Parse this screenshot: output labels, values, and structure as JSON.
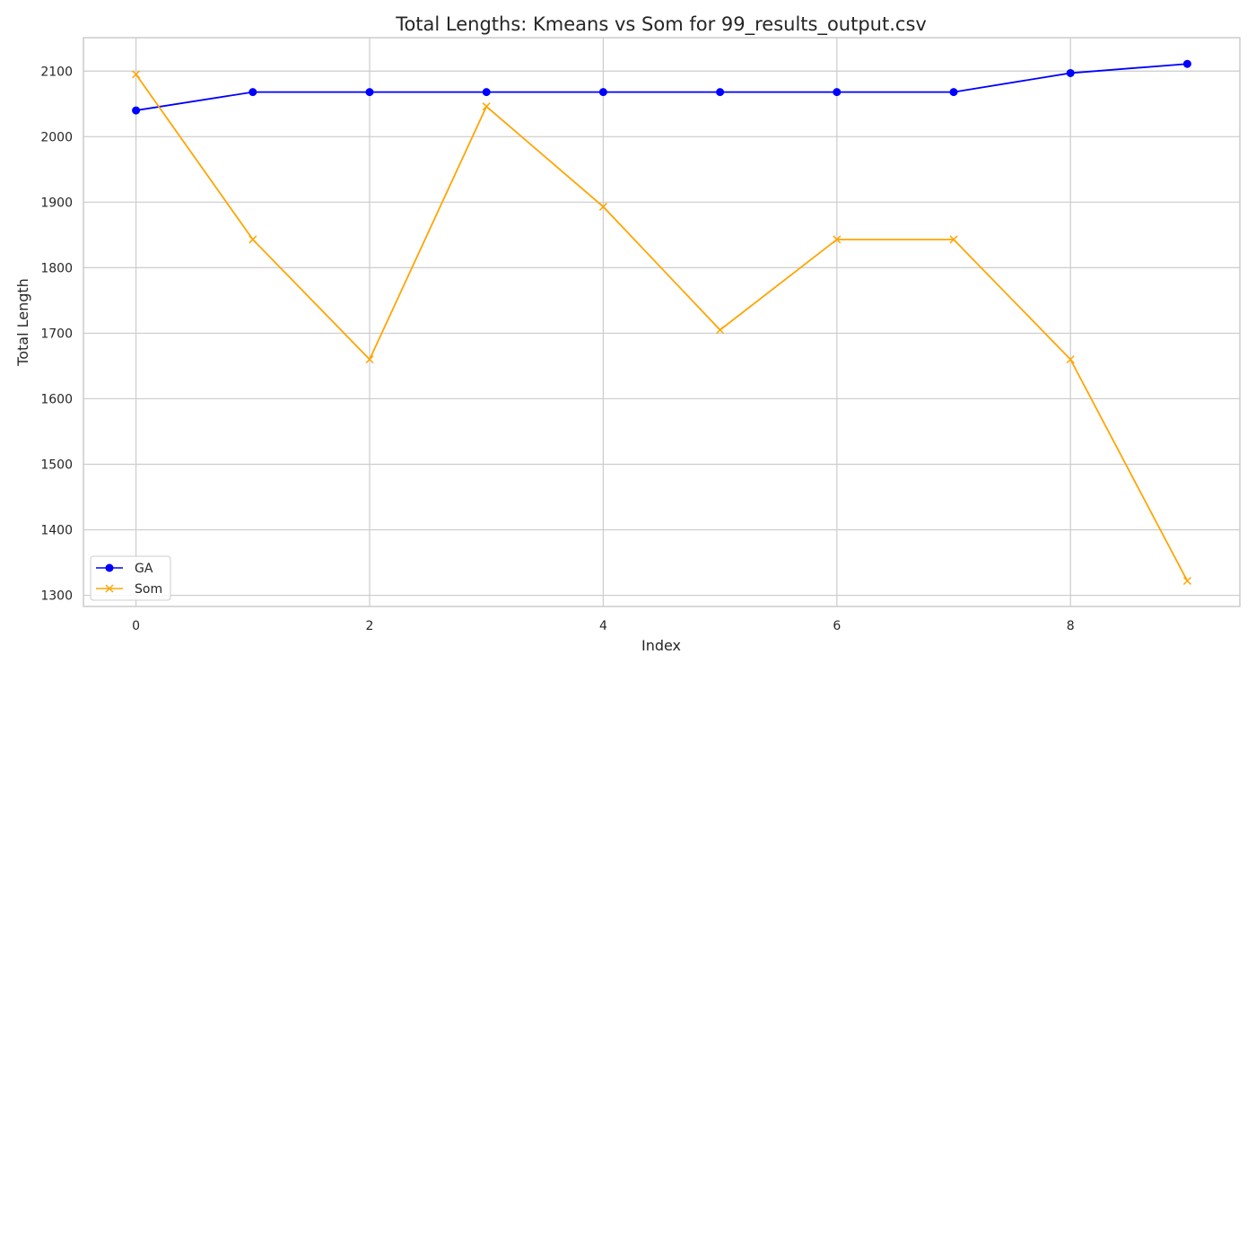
{
  "chart_data": {
    "type": "line",
    "title": "Total Lengths: Kmeans vs Som  for 99_results_output.csv",
    "xlabel": "Index",
    "ylabel": "Total Length",
    "x": [
      0,
      1,
      2,
      3,
      4,
      5,
      6,
      7,
      8,
      9
    ],
    "xlim": [
      -0.45,
      9.45
    ],
    "ylim": [
      1283,
      2151
    ],
    "xticks": [
      0,
      2,
      4,
      6,
      8
    ],
    "yticks": [
      1300,
      1400,
      1500,
      1600,
      1700,
      1800,
      1900,
      2000,
      2100
    ],
    "grid": true,
    "legend_position": "lower-left",
    "series": [
      {
        "name": "GA",
        "color": "#0000ff",
        "marker": "circle",
        "values": [
          2040,
          2068,
          2068,
          2068,
          2068,
          2068,
          2068,
          2068,
          2097,
          2111
        ]
      },
      {
        "name": "Som",
        "color": "#ffa500",
        "marker": "x",
        "values": [
          2095,
          1843,
          1660,
          2046,
          1893,
          1705,
          1843,
          1843,
          1660,
          1322
        ]
      }
    ]
  }
}
